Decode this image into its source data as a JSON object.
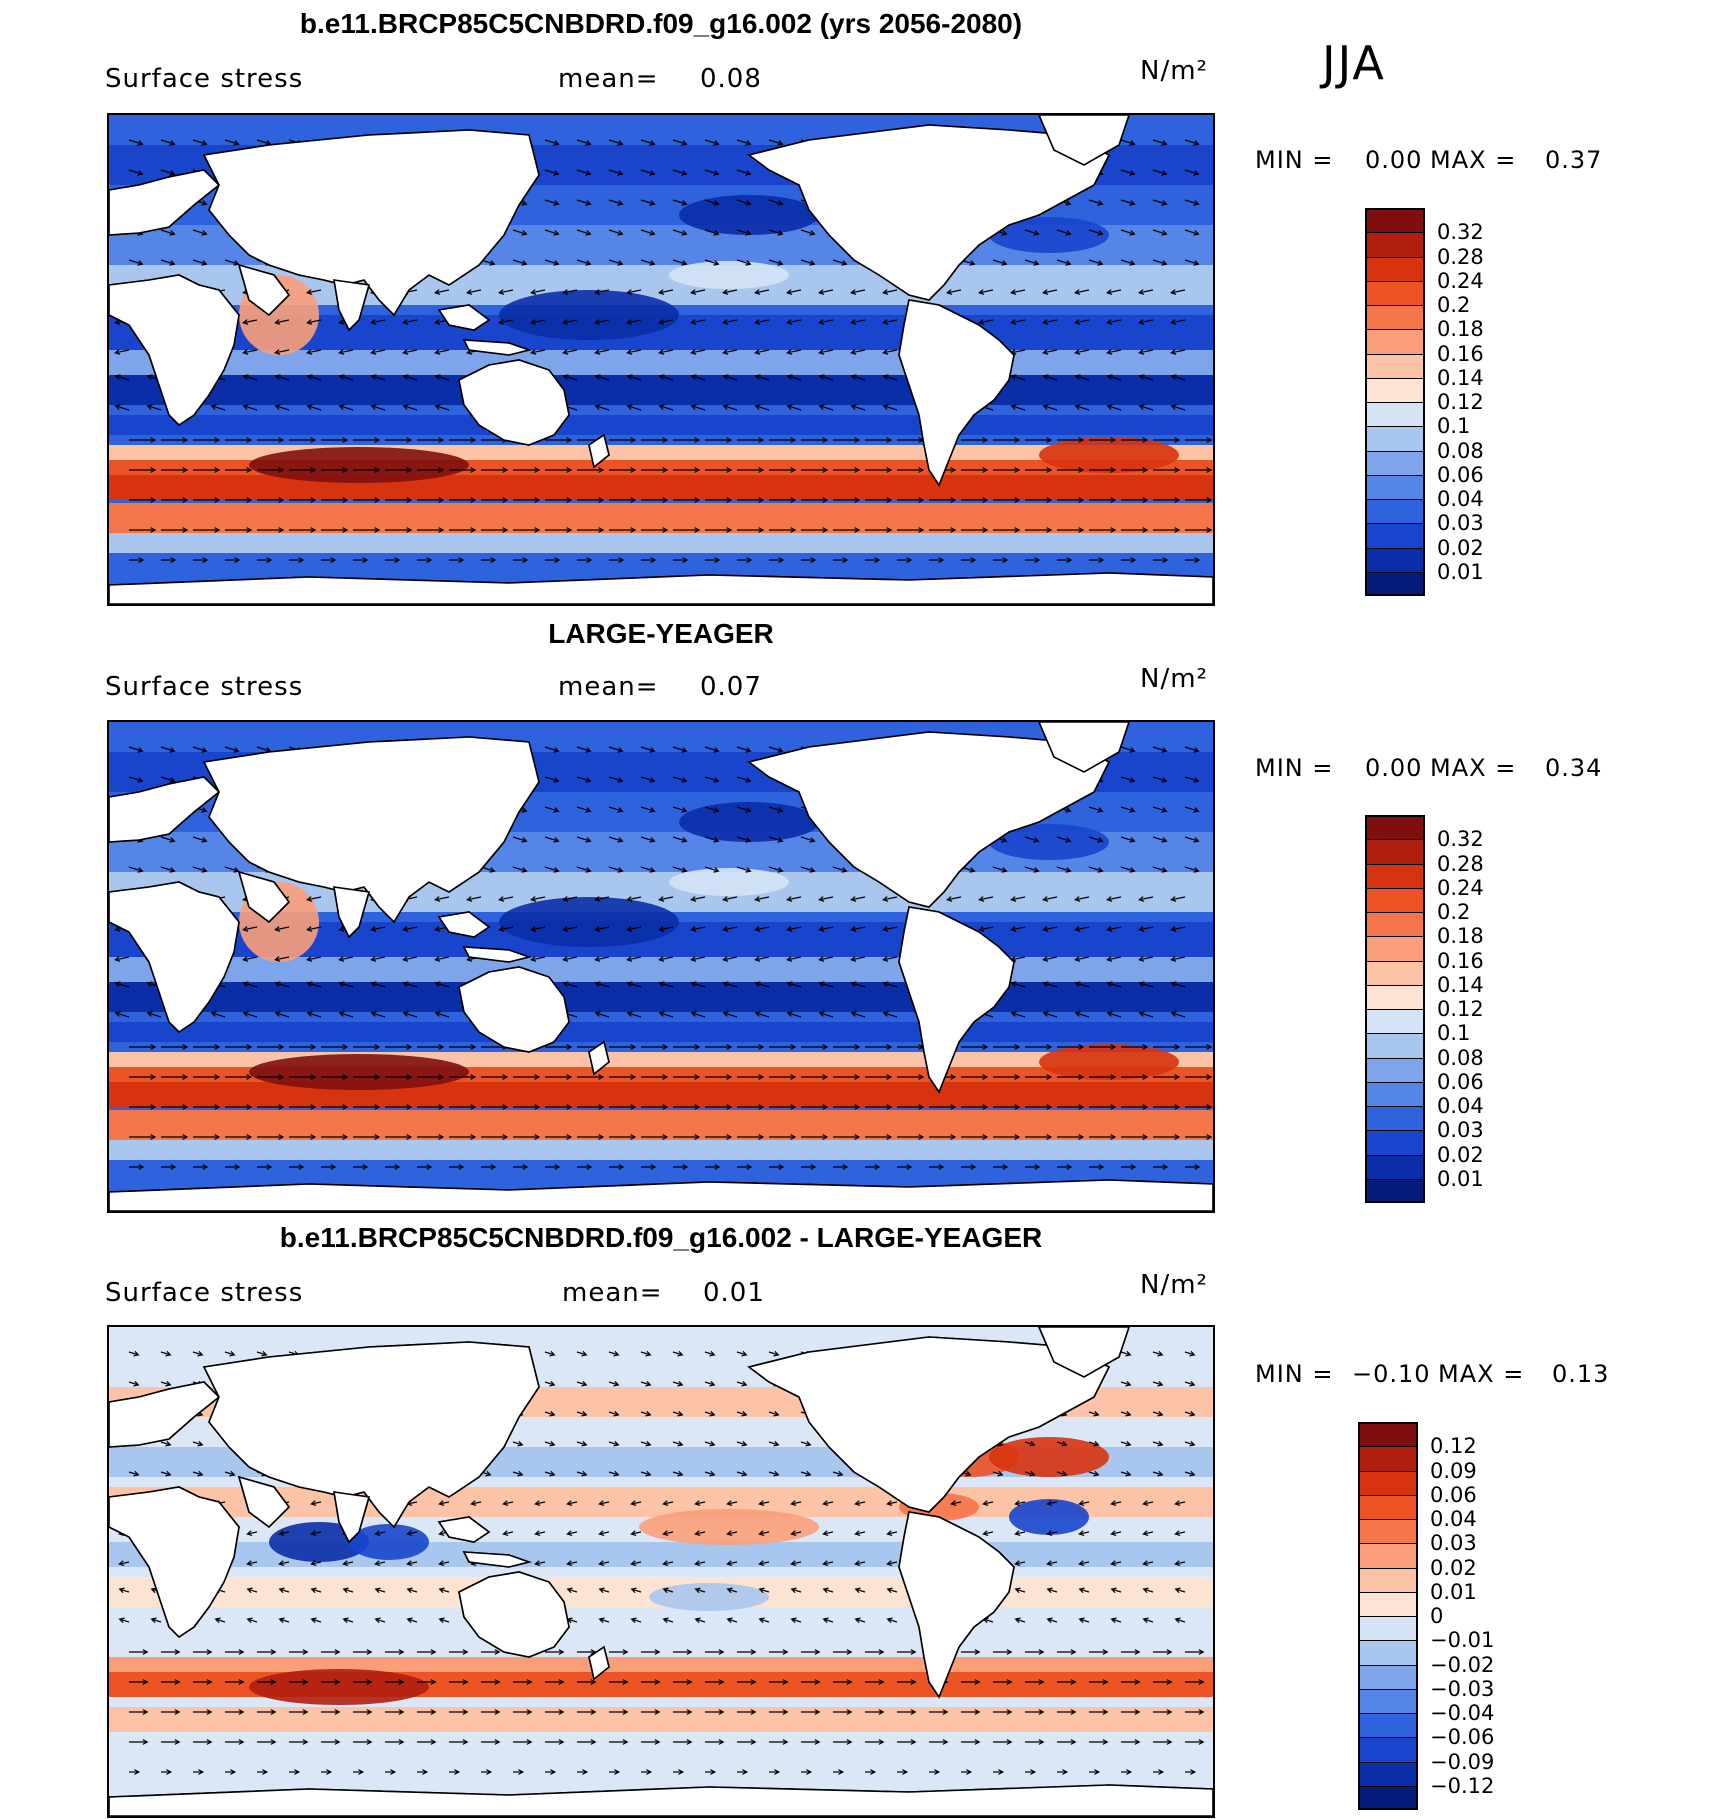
{
  "season": "JJA",
  "colors": {
    "ocean_base_mean": "#3a6cd8",
    "ocean_base_diff": "#dbe7f7",
    "land": "#ffffff",
    "coast": "#000000"
  },
  "panels": [
    {
      "title": "b.e11.BRCP85C5CNBDRD.f09_g16.002 (yrs 2056-2080)",
      "variable": "Surface stress",
      "mean_label": "mean=",
      "mean_value": "0.08",
      "units": "N/m²",
      "min_label": "MIN =",
      "min_value": "0.00",
      "max_label": "MAX =",
      "max_value": "0.37",
      "kind": "mean",
      "colorbar": {
        "labels": [
          "0.32",
          "0.28",
          "0.24",
          "0.2",
          "0.18",
          "0.16",
          "0.14",
          "0.12",
          "0.1",
          "0.08",
          "0.06",
          "0.04",
          "0.03",
          "0.02",
          "0.01"
        ],
        "colors": [
          "#7f0f0f",
          "#b01e0f",
          "#d8330f",
          "#ec5325",
          "#f5764a",
          "#f99e79",
          "#fcc3a6",
          "#fde4d2",
          "#d4e3f5",
          "#a9c6ee",
          "#7ea5ea",
          "#5585e6",
          "#2f62dd",
          "#1845cc",
          "#0a2ea8",
          "#041c7a"
        ]
      }
    },
    {
      "title": "LARGE-YEAGER",
      "variable": "Surface stress",
      "mean_label": "mean=",
      "mean_value": "0.07",
      "units": "N/m²",
      "min_label": "MIN =",
      "min_value": "0.00",
      "max_label": "MAX =",
      "max_value": "0.34",
      "kind": "mean",
      "colorbar": {
        "labels": [
          "0.32",
          "0.28",
          "0.24",
          "0.2",
          "0.18",
          "0.16",
          "0.14",
          "0.12",
          "0.1",
          "0.08",
          "0.06",
          "0.04",
          "0.03",
          "0.02",
          "0.01"
        ],
        "colors": [
          "#7f0f0f",
          "#b01e0f",
          "#d8330f",
          "#ec5325",
          "#f5764a",
          "#f99e79",
          "#fcc3a6",
          "#fde4d2",
          "#d4e3f5",
          "#a9c6ee",
          "#7ea5ea",
          "#5585e6",
          "#2f62dd",
          "#1845cc",
          "#0a2ea8",
          "#041c7a"
        ]
      }
    },
    {
      "title": "b.e11.BRCP85C5CNBDRD.f09_g16.002 - LARGE-YEAGER",
      "variable": "Surface stress",
      "mean_label": "mean=",
      "mean_value": "0.01",
      "units": "N/m²",
      "min_label": "MIN =",
      "min_value": "−0.10",
      "max_label": "MAX =",
      "max_value": "0.13",
      "kind": "diff",
      "colorbar": {
        "labels": [
          "0.12",
          "0.09",
          "0.06",
          "0.04",
          "0.03",
          "0.02",
          "0.01",
          "0",
          "−0.01",
          "−0.02",
          "−0.03",
          "−0.04",
          "−0.06",
          "−0.09",
          "−0.12"
        ],
        "colors": [
          "#7f0f0f",
          "#b01e0f",
          "#d8330f",
          "#ec5325",
          "#f5764a",
          "#f99e79",
          "#fcc3a6",
          "#fde4d2",
          "#d4e3f5",
          "#a9c6ee",
          "#7ea5ea",
          "#5585e6",
          "#2f62dd",
          "#1845cc",
          "#0a2ea8",
          "#041c7a"
        ]
      }
    }
  ]
}
